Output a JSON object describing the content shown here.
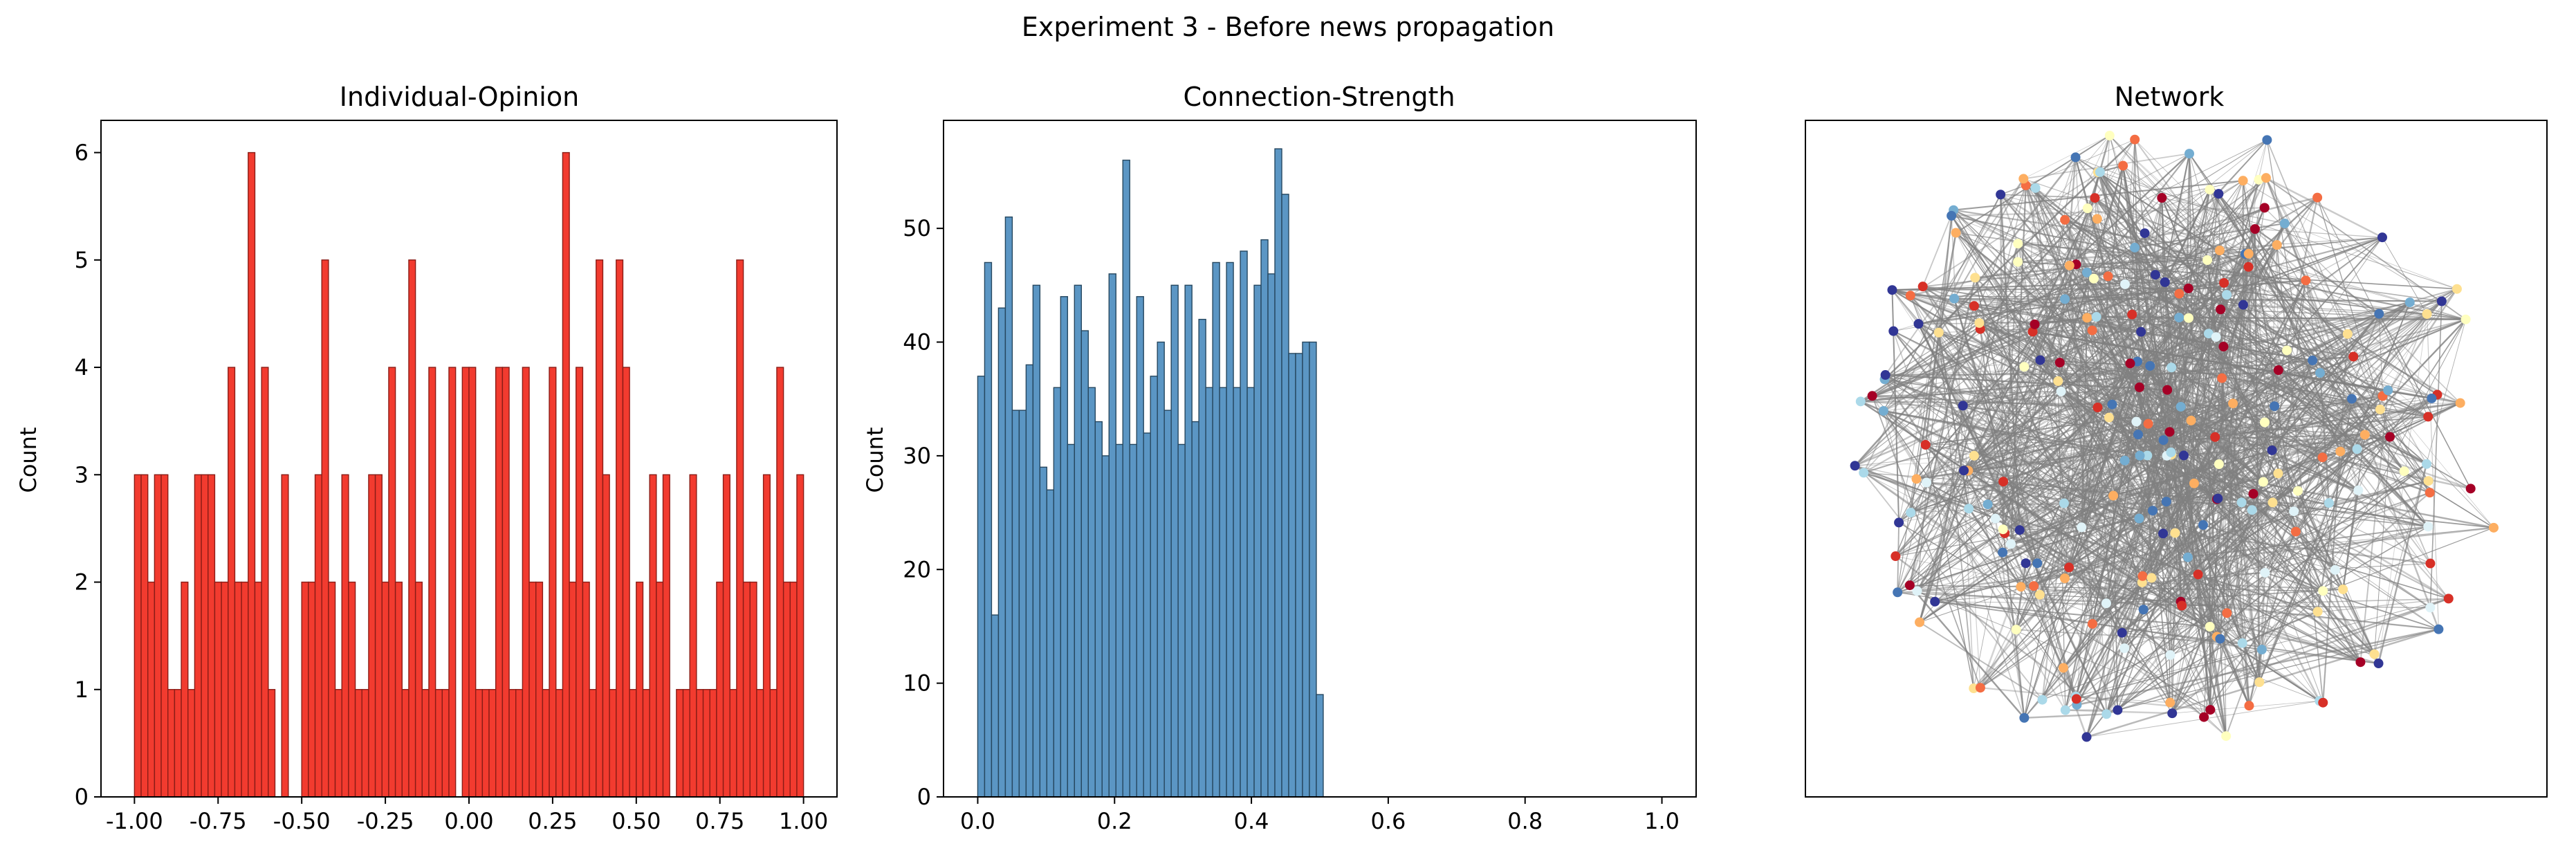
{
  "figure": {
    "suptitle": "Experiment 3 - Before news propagation"
  },
  "colors": {
    "opinion_bar": "#f23b2f",
    "opinion_edge": "#8a1c16",
    "strength_bar": "#5b96c4",
    "strength_edge": "#26475f",
    "network_edge": "#808080"
  },
  "chart_data": [
    {
      "type": "bar",
      "title": "Individual-Opinion",
      "xlabel": "",
      "ylabel": "Count",
      "bin_edges_range": [
        -1.0,
        1.0
      ],
      "bins": 100,
      "values": [
        3,
        3,
        2,
        3,
        3,
        1,
        1,
        2,
        1,
        3,
        3,
        3,
        2,
        2,
        4,
        2,
        2,
        6,
        2,
        4,
        1,
        0,
        3,
        0,
        0,
        2,
        2,
        3,
        5,
        2,
        1,
        3,
        2,
        1,
        1,
        3,
        3,
        2,
        4,
        2,
        1,
        5,
        2,
        1,
        4,
        1,
        1,
        4,
        0,
        4,
        4,
        1,
        1,
        1,
        4,
        4,
        1,
        1,
        4,
        2,
        2,
        1,
        4,
        1,
        6,
        2,
        4,
        2,
        1,
        5,
        3,
        1,
        5,
        4,
        1,
        2,
        1,
        3,
        2,
        3,
        0,
        1,
        1,
        3,
        1,
        1,
        1,
        2,
        3,
        1,
        5,
        2,
        2,
        1,
        3,
        1,
        4,
        2,
        2,
        3
      ],
      "xlim": [
        -1.1,
        1.1
      ],
      "ylim": [
        0,
        6.3
      ],
      "xticks": [
        "-1.00",
        "-0.75",
        "-0.50",
        "-0.25",
        "0.00",
        "0.25",
        "0.50",
        "0.75",
        "1.00"
      ],
      "yticks": [
        "0",
        "1",
        "2",
        "3",
        "4",
        "5",
        "6"
      ]
    },
    {
      "type": "bar",
      "title": "Connection-Strength",
      "xlabel": "",
      "ylabel": "Count",
      "bin_edges_range": [
        0.0,
        0.505
      ],
      "bins": 50,
      "values": [
        37,
        47,
        16,
        43,
        51,
        34,
        34,
        38,
        45,
        29,
        27,
        36,
        44,
        31,
        45,
        41,
        36,
        33,
        30,
        46,
        31,
        56,
        31,
        44,
        32,
        37,
        40,
        34,
        45,
        31,
        45,
        33,
        42,
        36,
        47,
        36,
        47,
        36,
        48,
        36,
        45,
        49,
        46,
        57,
        53,
        39,
        39,
        40,
        40,
        9
      ],
      "xlim": [
        -0.05,
        1.05
      ],
      "ylim": [
        0,
        59.5
      ],
      "xticks": [
        "0.0",
        "0.2",
        "0.4",
        "0.6",
        "0.8",
        "1.0"
      ],
      "yticks": [
        "0",
        "10",
        "20",
        "30",
        "40",
        "50"
      ]
    },
    {
      "type": "network",
      "title": "Network",
      "node_colors": [
        "#a50026",
        "#d73027",
        "#f46d43",
        "#fdae61",
        "#fee090",
        "#ffffbf",
        "#e0f3f8",
        "#abd9e9",
        "#74add1",
        "#4575b4",
        "#313695"
      ]
    }
  ]
}
